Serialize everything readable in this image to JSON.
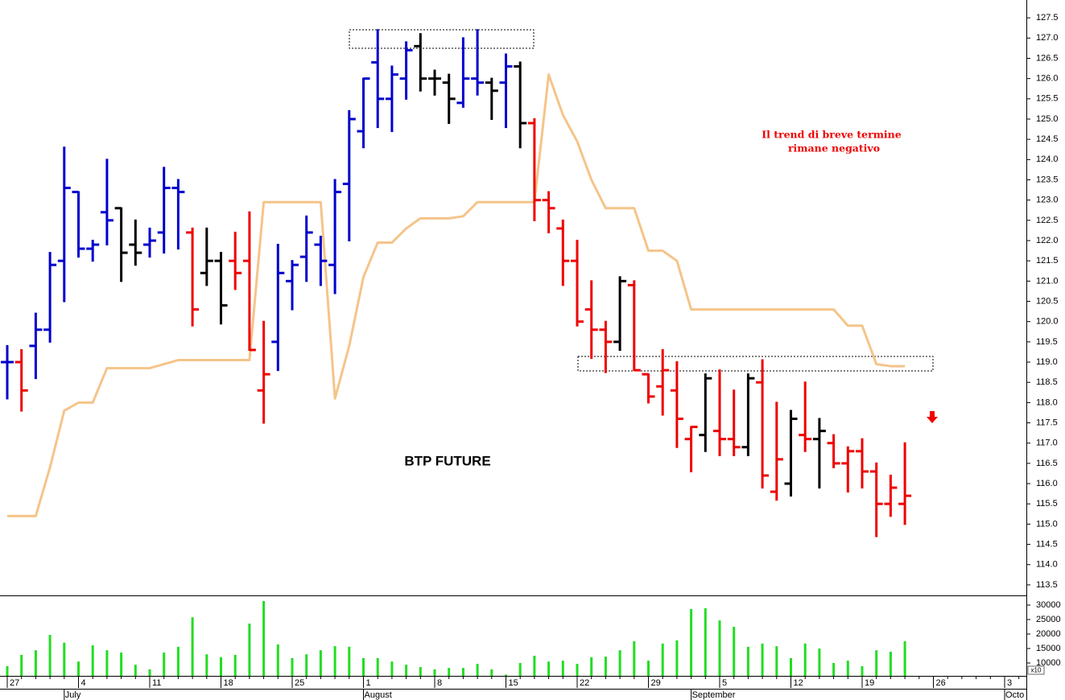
{
  "chart_data": {
    "type": "ohlc",
    "title": "BTP FUTURE",
    "annotation": [
      "Il trend di breve termine",
      "rimane negativo"
    ],
    "y2_unit": "x10",
    "categories": [
      "27",
      null,
      null,
      null,
      null,
      "4",
      null,
      null,
      null,
      null,
      "11",
      null,
      null,
      null,
      null,
      "18",
      null,
      null,
      null,
      null,
      "25",
      null,
      null,
      null,
      null,
      "1",
      null,
      null,
      null,
      null,
      "8",
      null,
      null,
      null,
      null,
      "15",
      null,
      null,
      null,
      null,
      "22",
      null,
      null,
      null,
      null,
      "29",
      null,
      null,
      null,
      null,
      "5",
      null,
      null,
      null,
      null,
      "12",
      null,
      null,
      null,
      null,
      "19",
      null,
      null,
      null,
      null,
      "26",
      null,
      null,
      null,
      null,
      "3",
      null
    ],
    "month_categories": [
      null,
      null,
      null,
      null,
      "July",
      null,
      null,
      null,
      null,
      null,
      null,
      null,
      null,
      null,
      null,
      null,
      null,
      null,
      null,
      null,
      null,
      null,
      null,
      null,
      null,
      "August",
      null,
      null,
      null,
      null,
      null,
      null,
      null,
      null,
      null,
      null,
      null,
      null,
      null,
      null,
      null,
      null,
      null,
      null,
      null,
      null,
      null,
      null,
      "September",
      null,
      null,
      null,
      null,
      null,
      null,
      null,
      null,
      null,
      null,
      null,
      null,
      null,
      null,
      null,
      null,
      null,
      null,
      null,
      null,
      null,
      "Octo",
      null
    ],
    "open": [
      119.0,
      119.0,
      119.4,
      119.8,
      121.5,
      123.2,
      121.8,
      122.7,
      122.8,
      121.9,
      121.9,
      122.2,
      123.3,
      122.2,
      121.2,
      121.5,
      121.5,
      121.5,
      118.3,
      119.5,
      121.0,
      121.6,
      121.9,
      121.4,
      123.4,
      124.7,
      126.4,
      125.5,
      126.0,
      126.8,
      126.0,
      125.9,
      125.4,
      126.0,
      125.9,
      125.9,
      126.3,
      124.9,
      123.0,
      122.3,
      121.5,
      120.3,
      119.8,
      119.5,
      120.9,
      118.7,
      118.4,
      118.3,
      117.1,
      117.2,
      117.3,
      117.1,
      116.9,
      118.5,
      115.8,
      116.0,
      117.2,
      117.1,
      117.0,
      116.5,
      116.8,
      116.3,
      115.5,
      115.5,
      null,
      null,
      null,
      null,
      null,
      null,
      null,
      null
    ],
    "high": [
      119.4,
      119.3,
      120.2,
      121.7,
      124.3,
      123.2,
      122.0,
      124.0,
      122.8,
      122.5,
      122.3,
      123.8,
      123.5,
      122.3,
      122.3,
      121.7,
      122.2,
      122.7,
      120.0,
      121.9,
      121.5,
      122.6,
      122.1,
      123.5,
      125.2,
      126.0,
      127.2,
      126.3,
      126.9,
      127.1,
      126.2,
      126.1,
      127.0,
      127.2,
      126.0,
      126.6,
      126.4,
      125.0,
      123.2,
      122.5,
      122.0,
      121.0,
      120.0,
      121.1,
      121.0,
      118.7,
      119.3,
      119.0,
      117.4,
      118.7,
      118.8,
      118.3,
      118.7,
      119.05,
      118.0,
      117.8,
      118.5,
      117.6,
      117.2,
      116.9,
      117.1,
      116.5,
      116.2,
      117.0,
      null,
      null,
      null,
      null,
      null,
      null,
      null,
      null
    ],
    "low": [
      118.1,
      117.8,
      118.6,
      119.5,
      120.5,
      121.6,
      121.5,
      121.9,
      121.0,
      121.4,
      121.6,
      121.7,
      121.8,
      119.9,
      120.9,
      119.95,
      120.8,
      119.3,
      117.5,
      118.8,
      120.3,
      121.0,
      120.9,
      120.7,
      122.0,
      124.3,
      124.8,
      124.7,
      125.5,
      125.7,
      125.6,
      124.9,
      125.3,
      125.6,
      125.0,
      124.8,
      124.3,
      122.5,
      122.2,
      120.9,
      119.9,
      119.1,
      118.75,
      119.3,
      118.8,
      118.0,
      117.7,
      116.9,
      116.3,
      116.8,
      116.7,
      116.7,
      116.7,
      115.9,
      115.6,
      115.7,
      116.8,
      115.9,
      116.4,
      115.8,
      115.9,
      114.7,
      115.2,
      115.0,
      null,
      null,
      null,
      null,
      null,
      null,
      null,
      null
    ],
    "close": [
      119.0,
      118.3,
      119.8,
      121.4,
      123.3,
      121.8,
      121.9,
      122.5,
      121.7,
      121.7,
      122.0,
      123.3,
      123.2,
      120.3,
      121.5,
      120.4,
      121.2,
      119.3,
      118.7,
      121.2,
      121.4,
      122.2,
      121.5,
      123.2,
      125.0,
      126.0,
      125.5,
      126.1,
      126.7,
      126.0,
      126.0,
      125.5,
      126.0,
      125.9,
      125.7,
      126.3,
      124.9,
      123.0,
      122.8,
      121.5,
      120.0,
      119.8,
      119.5,
      121.0,
      118.8,
      118.15,
      118.8,
      117.6,
      117.4,
      118.6,
      117.1,
      116.9,
      118.6,
      116.2,
      116.6,
      117.6,
      117.1,
      117.3,
      116.5,
      116.8,
      116.3,
      115.5,
      115.9,
      115.7,
      null,
      null,
      null,
      null,
      null,
      null,
      null,
      null
    ],
    "bar_colors": [
      "#0000cc",
      "#ee0000",
      "#0000cc",
      "#0000cc",
      "#0000cc",
      "#0000cc",
      "#0000cc",
      "#0000cc",
      "#000000",
      "#000000",
      "#0000cc",
      "#0000cc",
      "#0000cc",
      "#ee0000",
      "#000000",
      "#000000",
      "#ee0000",
      "#ee0000",
      "#ee0000",
      "#0000cc",
      "#0000cc",
      "#0000cc",
      "#0000cc",
      "#0000cc",
      "#0000cc",
      "#0000cc",
      "#0000cc",
      "#0000cc",
      "#0000cc",
      "#000000",
      "#000000",
      "#000000",
      "#0000cc",
      "#0000cc",
      "#000000",
      "#0000cc",
      "#000000",
      "#ee0000",
      "#ee0000",
      "#ee0000",
      "#ee0000",
      "#ee0000",
      "#ee0000",
      "#000000",
      "#ee0000",
      "#ee0000",
      "#ee0000",
      "#ee0000",
      "#ee0000",
      "#000000",
      "#ee0000",
      "#ee0000",
      "#000000",
      "#ee0000",
      "#ee0000",
      "#000000",
      "#ee0000",
      "#000000",
      "#ee0000",
      "#ee0000",
      "#ee0000",
      "#ee0000",
      "#ee0000",
      "#ee0000",
      null,
      null,
      null,
      null,
      null,
      null,
      null,
      null
    ],
    "trail": {
      "color": "#f5c48a",
      "values": [
        115.2,
        115.2,
        115.2,
        116.4,
        117.8,
        118.0,
        118.0,
        118.85,
        118.85,
        118.85,
        118.85,
        118.95,
        119.05,
        119.05,
        119.05,
        119.05,
        119.05,
        119.05,
        122.95,
        122.95,
        122.95,
        122.95,
        122.95,
        118.1,
        119.4,
        121.1,
        121.95,
        121.95,
        122.3,
        122.55,
        122.55,
        122.55,
        122.6,
        122.95,
        122.95,
        122.95,
        122.95,
        122.95,
        126.1,
        125.1,
        124.45,
        123.5,
        122.8,
        122.8,
        122.8,
        121.75,
        121.75,
        121.5,
        120.3,
        120.3,
        120.3,
        120.3,
        120.3,
        120.3,
        120.3,
        120.3,
        120.3,
        120.3,
        120.3,
        119.9,
        119.9,
        118.95,
        118.9,
        118.9,
        null,
        null,
        null,
        null,
        null,
        null,
        null,
        null
      ]
    },
    "volume": {
      "color": "#22dd22",
      "axis": "y2",
      "values": [
        8900,
        12800,
        14400,
        19700,
        17000,
        10500,
        16100,
        14400,
        13600,
        9400,
        7800,
        13600,
        15600,
        25800,
        13000,
        12000,
        12800,
        23600,
        31400,
        16400,
        11700,
        13000,
        14400,
        15800,
        15600,
        11700,
        11700,
        10500,
        9400,
        8600,
        7800,
        8300,
        8300,
        9700,
        7800,
        6000,
        10000,
        12500,
        10500,
        10800,
        9700,
        12000,
        12200,
        14400,
        17500,
        10800,
        16700,
        17800,
        28600,
        28900,
        24700,
        22500,
        15600,
        16700,
        15800,
        11700,
        16700,
        15000,
        10000,
        10800,
        8900,
        14400,
        13900,
        17500,
        null,
        null,
        null,
        null,
        null,
        null,
        null,
        null
      ]
    },
    "ylim": [
      113.24,
      127.94
    ],
    "yticks": [
      113.5,
      {
        "value": 114,
        "label": "114.0"
      },
      114.5,
      {
        "value": 115,
        "label": "115.0"
      },
      115.5,
      {
        "value": 116,
        "label": "116.0"
      },
      116.5,
      {
        "value": 117,
        "label": "117.0"
      },
      117.5,
      {
        "value": 118,
        "label": "118.0"
      },
      118.5,
      {
        "value": 119,
        "label": "119.0"
      },
      119.5,
      {
        "value": 120,
        "label": "120.0"
      },
      120.5,
      {
        "value": 121,
        "label": "121.0"
      },
      121.5,
      {
        "value": 122,
        "label": "122.0"
      },
      122.5,
      {
        "value": 123,
        "label": "123.0"
      },
      123.5,
      {
        "value": 124,
        "label": "124.0"
      },
      124.5,
      {
        "value": 125,
        "label": "125.0"
      },
      125.5,
      {
        "value": 126,
        "label": "126.0"
      },
      126.5,
      {
        "value": 127,
        "label": "127.0"
      },
      127.5
    ],
    "y2lim": [
      5556,
      33056
    ],
    "y2ticks": [
      30000,
      25000,
      20000,
      15000,
      10000
    ]
  }
}
